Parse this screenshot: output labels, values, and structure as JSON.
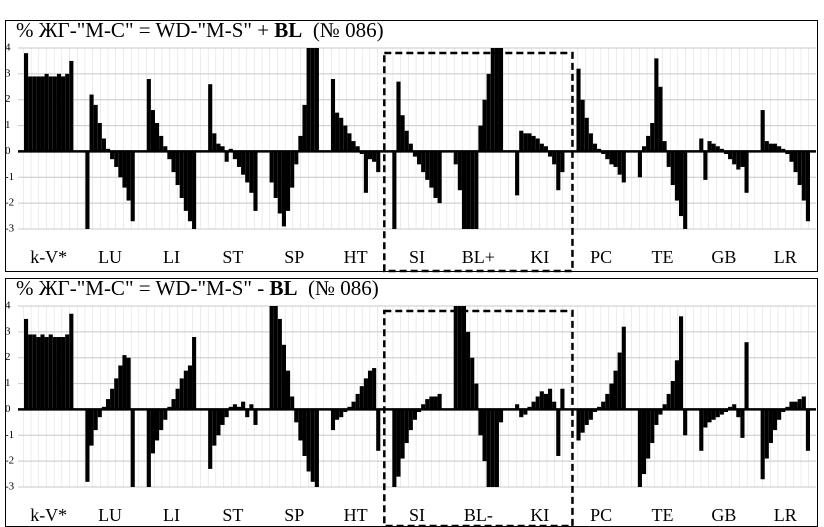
{
  "chart_data": [
    {
      "type": "bar",
      "title_parts": [
        {
          "text": "% ЖГ-\"M-C\" = WD-\"M-S\" + ",
          "bold": false
        },
        {
          "text": "BL",
          "bold": true
        },
        {
          "text": "  (№ 086)",
          "bold": false
        }
      ],
      "ylim": [
        -3,
        4
      ],
      "yticks": [
        -3,
        -2,
        -1,
        0,
        1,
        2,
        3,
        4
      ],
      "grid": true,
      "color": "#000000",
      "highlight_groups": [
        6,
        8
      ],
      "groups": [
        {
          "name": "k-V*",
          "values": [
            3.8,
            2.9,
            2.9,
            2.9,
            2.9,
            3.0,
            2.9,
            2.9,
            3.0,
            2.9,
            3.0,
            3.5
          ]
        },
        {
          "name": "LU",
          "values": [
            -3.0,
            2.2,
            1.8,
            1.1,
            0.5,
            0.1,
            -0.3,
            -0.6,
            -1.0,
            -1.4,
            -1.9,
            -2.7
          ]
        },
        {
          "name": "LI",
          "values": [
            2.8,
            1.6,
            1.1,
            0.6,
            0.2,
            -0.3,
            -0.8,
            -1.3,
            -1.8,
            -2.3,
            -2.7,
            -3.0
          ]
        },
        {
          "name": "ST",
          "values": [
            2.6,
            0.7,
            0.3,
            0.2,
            -0.4,
            0.1,
            -0.3,
            -0.6,
            -0.9,
            -1.2,
            -1.6,
            -2.3
          ]
        },
        {
          "name": "SP",
          "values": [
            -1.2,
            -1.8,
            -2.4,
            -2.9,
            -2.3,
            -1.4,
            -0.5,
            0.6,
            1.8,
            4,
            4,
            4
          ]
        },
        {
          "name": "HT",
          "values": [
            2.8,
            1.5,
            1.3,
            1.0,
            0.7,
            0.4,
            0.2,
            -0.1,
            -1.6,
            -0.3,
            -0.4,
            -0.8
          ]
        },
        {
          "name": "SI",
          "values": [
            -3.0,
            2.7,
            1.4,
            0.8,
            0.3,
            -0.2,
            -0.5,
            -0.8,
            -1.1,
            -1.4,
            -1.8,
            -2.0
          ]
        },
        {
          "name": "BL+",
          "values": [
            -0.5,
            -1.5,
            -3,
            -3,
            -3,
            -3,
            1,
            2,
            3,
            4,
            4,
            4
          ]
        },
        {
          "name": "KI",
          "values": [
            -1.7,
            0.8,
            0.7,
            0.7,
            0.6,
            0.5,
            0.3,
            0.2,
            -0.2,
            -0.5,
            -1.5,
            -0.8
          ]
        },
        {
          "name": "PC",
          "values": [
            3.2,
            2.0,
            1.3,
            0.7,
            0.3,
            0.1,
            -0.1,
            -0.3,
            -0.5,
            -0.6,
            -0.9,
            -1.2
          ]
        },
        {
          "name": "TE",
          "values": [
            -1.0,
            0.2,
            0.6,
            1.1,
            3.6,
            2.5,
            0.4,
            -0.6,
            -1.3,
            -1.9,
            -2.5,
            -3.0
          ]
        },
        {
          "name": "GB",
          "values": [
            0.5,
            -1.1,
            0.4,
            0.3,
            0.2,
            0.1,
            -0.1,
            -0.3,
            -0.5,
            -0.7,
            -0.6,
            -1.6
          ]
        },
        {
          "name": "LR",
          "values": [
            1.6,
            0.4,
            0.3,
            0.3,
            0.2,
            0.1,
            -0.1,
            -0.4,
            -0.8,
            -1.3,
            -1.9,
            -2.7
          ]
        }
      ]
    },
    {
      "type": "bar",
      "title_parts": [
        {
          "text": "% ЖГ-\"M-C\" = WD-\"M-S\" - ",
          "bold": false
        },
        {
          "text": "BL",
          "bold": true
        },
        {
          "text": "  (№ 086)",
          "bold": false
        }
      ],
      "ylim": [
        -3,
        4
      ],
      "yticks": [
        -3,
        -2,
        -1,
        0,
        1,
        2,
        3,
        4
      ],
      "grid": true,
      "color": "#000000",
      "highlight_groups": [
        6,
        8
      ],
      "groups": [
        {
          "name": "k-V*",
          "values": [
            3.5,
            2.9,
            2.9,
            2.8,
            2.9,
            2.8,
            2.9,
            2.8,
            2.8,
            2.8,
            2.9,
            3.7
          ]
        },
        {
          "name": "LU",
          "values": [
            -2.8,
            -1.4,
            -0.8,
            -0.3,
            0.1,
            0.4,
            0.8,
            1.2,
            1.7,
            2.1,
            2.0,
            -3.0
          ]
        },
        {
          "name": "LI",
          "values": [
            -3.0,
            -1.7,
            -1.2,
            -0.8,
            -0.4,
            0.1,
            0.4,
            0.8,
            1.2,
            1.5,
            1.7,
            2.8
          ]
        },
        {
          "name": "ST",
          "values": [
            -2.3,
            -1.4,
            -1.0,
            -0.6,
            -0.3,
            0.1,
            0.2,
            0.1,
            0.3,
            -0.3,
            0.2,
            -0.6
          ]
        },
        {
          "name": "SP",
          "values": [
            4,
            4,
            3.5,
            2.5,
            1.5,
            0.5,
            -0.5,
            -1.2,
            -1.8,
            -2.4,
            -2.8,
            -3.0
          ]
        },
        {
          "name": "HT",
          "values": [
            -0.8,
            -0.4,
            -0.3,
            -0.1,
            0.1,
            0.3,
            0.6,
            0.9,
            1.2,
            1.5,
            1.6,
            -1.6
          ]
        },
        {
          "name": "SI",
          "values": [
            -3.0,
            -2.6,
            -1.9,
            -1.3,
            -0.8,
            -0.4,
            -0.1,
            0.2,
            0.4,
            0.5,
            0.5,
            0.6
          ]
        },
        {
          "name": "BL-",
          "values": [
            4,
            4,
            4,
            3,
            2,
            1,
            -1,
            -2,
            -3,
            -3,
            -3,
            -0.5
          ]
        },
        {
          "name": "KI",
          "values": [
            0.2,
            -0.3,
            -0.2,
            0.1,
            0.3,
            0.5,
            0.7,
            0.6,
            0.8,
            0.3,
            -1.8,
            0.8
          ]
        },
        {
          "name": "PC",
          "values": [
            -1.2,
            -0.9,
            -0.6,
            -0.4,
            -0.1,
            0.1,
            0.3,
            0.6,
            1.0,
            1.5,
            2.2,
            3.2
          ]
        },
        {
          "name": "TE",
          "values": [
            -3.0,
            -2.5,
            -1.9,
            -1.3,
            -0.6,
            -0.2,
            0.2,
            0.6,
            1.1,
            1.9,
            3.6,
            -1.0
          ]
        },
        {
          "name": "GB",
          "values": [
            -1.6,
            -0.7,
            -0.5,
            -0.4,
            -0.3,
            -0.2,
            -0.1,
            0.1,
            0.2,
            -0.3,
            -1.1,
            2.6
          ]
        },
        {
          "name": "LR",
          "values": [
            -2.7,
            -1.9,
            -1.3,
            -0.8,
            -0.4,
            -0.1,
            0.1,
            0.3,
            0.3,
            0.4,
            0.5,
            -1.6
          ]
        }
      ]
    }
  ]
}
